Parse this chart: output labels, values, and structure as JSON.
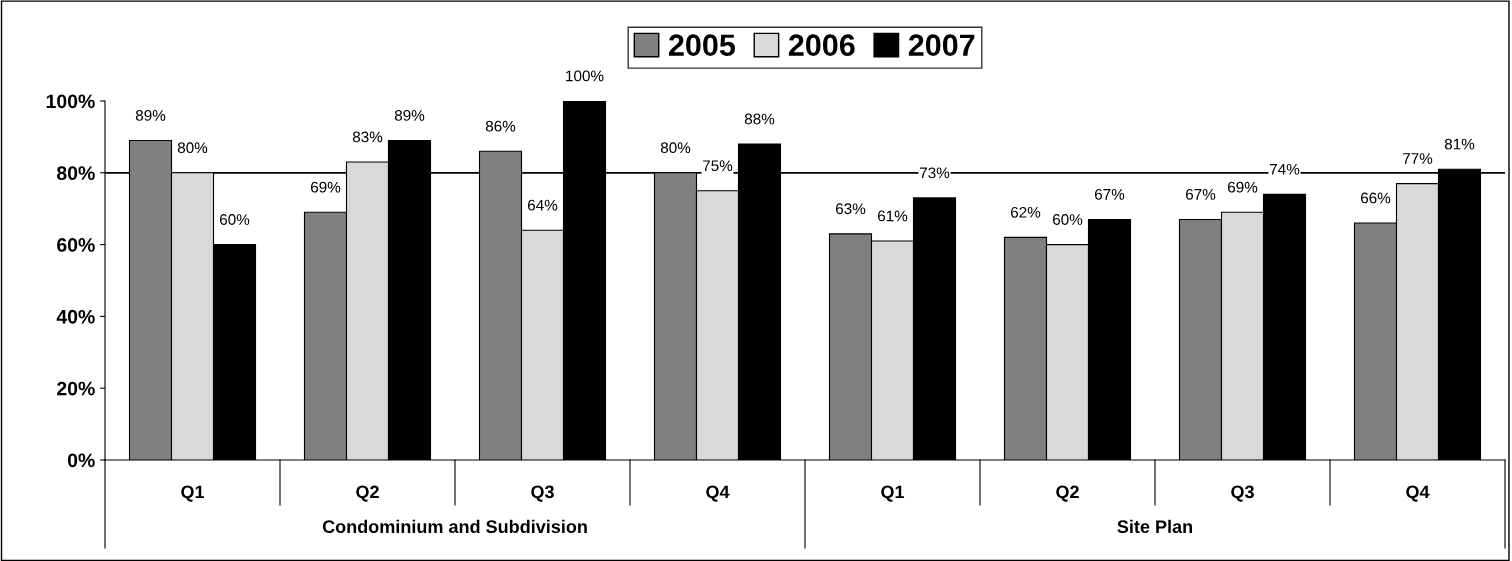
{
  "chart_data": {
    "type": "bar",
    "categories": [
      "Q1",
      "Q2",
      "Q3",
      "Q4",
      "Q1",
      "Q2",
      "Q3",
      "Q4"
    ],
    "annotations": [
      "Condominium and Subdivision",
      "Site Plan"
    ],
    "series": [
      {
        "name": "2005",
        "color": "#808080",
        "values": [
          89,
          69,
          86,
          80,
          63,
          62,
          67,
          66
        ],
        "value_labels": [
          "89%",
          "69%",
          "86%",
          "80%",
          "63%",
          "62%",
          "67%",
          "66%"
        ]
      },
      {
        "name": "2006",
        "color": "#d9d9d9",
        "values": [
          80,
          83,
          64,
          75,
          61,
          60,
          69,
          77
        ],
        "value_labels": [
          "80%",
          "83%",
          "64%",
          "75%",
          "61%",
          "60%",
          "69%",
          "77%"
        ]
      },
      {
        "name": "2007",
        "color": "#000000",
        "values": [
          60,
          89,
          100,
          88,
          73,
          67,
          74,
          81
        ],
        "value_labels": [
          "60%",
          "89%",
          "100%",
          "88%",
          "73%",
          "67%",
          "74%",
          "81%"
        ]
      }
    ],
    "ylim": [
      0,
      100
    ],
    "yticks": [
      {
        "value": 0,
        "label": "0%"
      },
      {
        "value": 20,
        "label": "20%"
      },
      {
        "value": 40,
        "label": "40%"
      },
      {
        "value": 60,
        "label": "60%"
      },
      {
        "value": 80,
        "label": "80%"
      },
      {
        "value": 100,
        "label": "100%"
      }
    ],
    "ref_lines": [
      {
        "axis": "y",
        "value": 80,
        "color": "#000000"
      }
    ],
    "legend": "top",
    "grid": false
  }
}
